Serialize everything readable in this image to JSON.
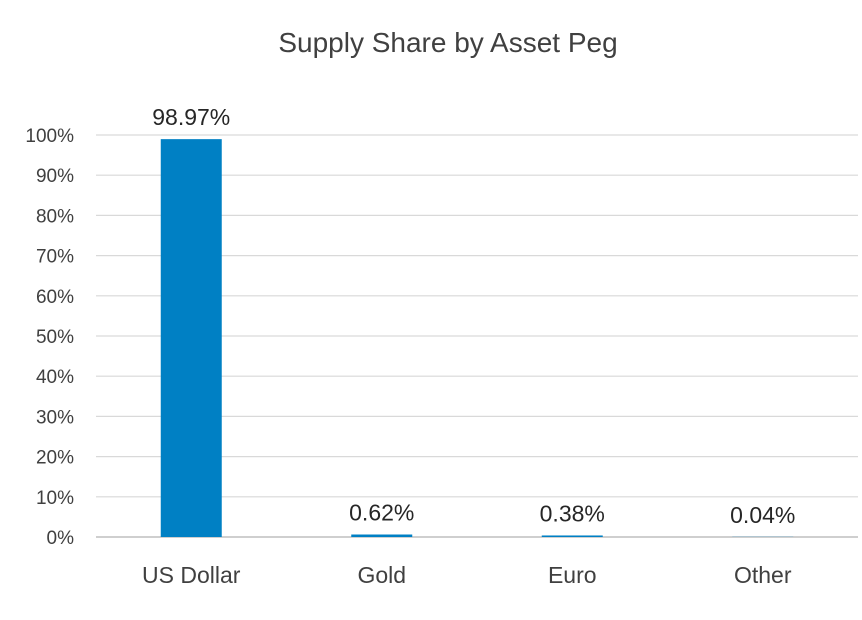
{
  "chart_data": {
    "type": "bar",
    "title": "Supply Share by Asset Peg",
    "categories": [
      "US Dollar",
      "Gold",
      "Euro",
      "Other"
    ],
    "values": [
      98.97,
      0.62,
      0.38,
      0.04
    ],
    "data_labels": [
      "98.97%",
      "0.62%",
      "0.38%",
      "0.04%"
    ],
    "xlabel": "",
    "ylabel": "",
    "ylim": [
      0,
      100
    ],
    "yticks": [
      "0%",
      "10%",
      "20%",
      "30%",
      "40%",
      "50%",
      "60%",
      "70%",
      "80%",
      "90%",
      "100%"
    ],
    "grid": true,
    "legend": "none",
    "bar_color": "#0080C4"
  }
}
